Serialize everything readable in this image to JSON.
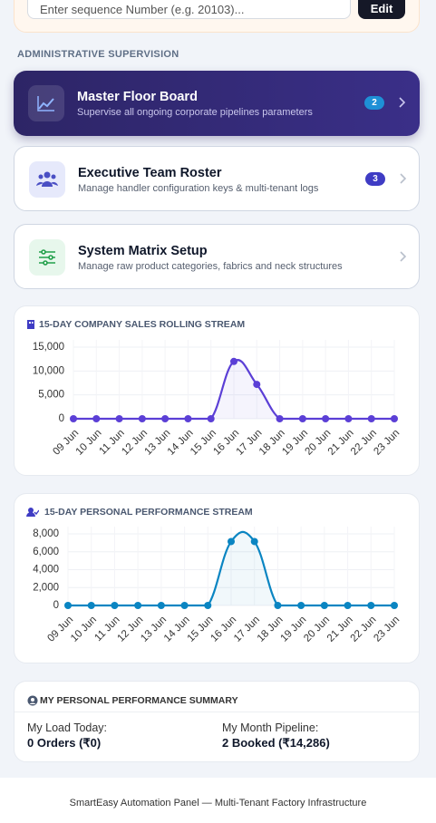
{
  "search": {
    "placeholder": "Enter sequence Number (e.g. 20103)...",
    "button": "Edit"
  },
  "section_title": "ADMINISTRATIVE SUPERVISION",
  "menu": [
    {
      "title": "Master Floor Board",
      "subtitle": "Supervise all ongoing corporate pipelines parameters",
      "badge": 2
    },
    {
      "title": "Executive Team Roster",
      "subtitle": "Manage handler configuration keys & multi-tenant logs",
      "badge": 3
    },
    {
      "title": "System Matrix Setup",
      "subtitle": "Manage raw product categories, fabrics and neck structures"
    }
  ],
  "chart_data": [
    {
      "type": "line",
      "title": "15-DAY COMPANY SALES ROLLING STREAM",
      "categories": [
        "09 Jun",
        "10 Jun",
        "11 Jun",
        "12 Jun",
        "13 Jun",
        "14 Jun",
        "15 Jun",
        "16 Jun",
        "17 Jun",
        "18 Jun",
        "19 Jun",
        "20 Jun",
        "21 Jun",
        "22 Jun",
        "23 Jun"
      ],
      "values": [
        0,
        0,
        0,
        0,
        0,
        0,
        0,
        12000,
        7200,
        0,
        0,
        0,
        0,
        0,
        0
      ],
      "color": "#5b3fd6",
      "ylim": [
        0,
        15000
      ],
      "yticks": [
        0,
        {
          "value": 5000,
          "label": "5,000"
        },
        {
          "value": 10000,
          "label": "10,000"
        },
        {
          "value": 15000,
          "label": "15,000"
        }
      ],
      "grid": true
    },
    {
      "type": "line",
      "title": "15-DAY PERSONAL PERFORMANCE STREAM",
      "categories": [
        "09 Jun",
        "10 Jun",
        "11 Jun",
        "12 Jun",
        "13 Jun",
        "14 Jun",
        "15 Jun",
        "16 Jun",
        "17 Jun",
        "18 Jun",
        "19 Jun",
        "20 Jun",
        "21 Jun",
        "22 Jun",
        "23 Jun"
      ],
      "values": [
        0,
        0,
        0,
        0,
        0,
        0,
        0,
        7143,
        7143,
        0,
        0,
        0,
        0,
        0,
        0
      ],
      "color": "#0a85c2",
      "ylim": [
        0,
        8000
      ],
      "yticks": [
        0,
        {
          "value": 2000,
          "label": "2,000"
        },
        {
          "value": 4000,
          "label": "4,000"
        },
        {
          "value": 6000,
          "label": "6,000"
        },
        {
          "value": 8000,
          "label": "8,000"
        }
      ],
      "grid": true
    }
  ],
  "summary": {
    "title": "MY PERSONAL PERFORMANCE SUMMARY",
    "items": [
      {
        "label": "My Load Today:",
        "value": "0 Orders (₹0)"
      },
      {
        "label": "My Month Pipeline:",
        "value": "2 Booked (₹14,286)"
      }
    ]
  },
  "footer": "SmartEasy Automation Panel — Multi-Tenant Factory Infrastructure"
}
